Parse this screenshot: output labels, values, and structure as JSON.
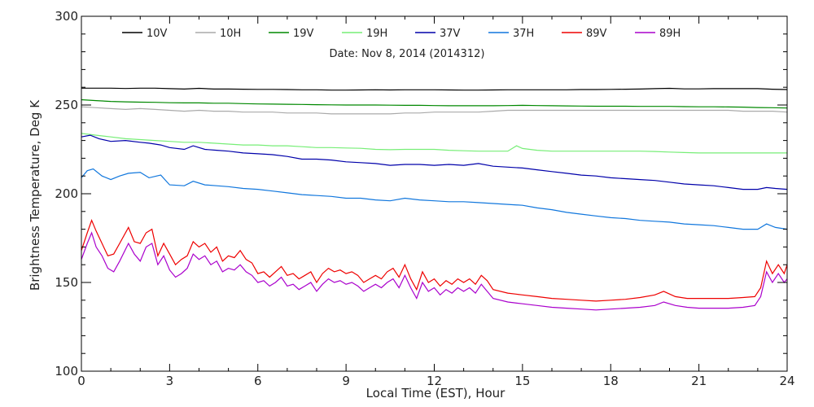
{
  "chart_data": {
    "type": "line",
    "title": "",
    "annotation": "Date: Nov  8, 2014 (2014312)",
    "xlabel": "Local Time (EST), Hour",
    "ylabel": "Brightness Temperature, Deg K",
    "xlim": [
      0,
      24
    ],
    "ylim": [
      100,
      300
    ],
    "xticks": [
      0,
      3,
      6,
      9,
      12,
      15,
      18,
      21,
      24
    ],
    "yticks": [
      100,
      150,
      200,
      250,
      300
    ],
    "grid": false,
    "legend_position": "top",
    "series": [
      {
        "name": "10V",
        "color": "#000000",
        "x": [
          0,
          0.5,
          1,
          1.5,
          2,
          2.5,
          3,
          3.5,
          4,
          4.5,
          5,
          5.5,
          6,
          6.5,
          7,
          7.5,
          8,
          8.5,
          9,
          9.5,
          10,
          10.5,
          11,
          11.5,
          12,
          12.5,
          13,
          13.5,
          14,
          14.5,
          15,
          15.5,
          16,
          16.5,
          17,
          17.5,
          18,
          18.5,
          19,
          19.5,
          20,
          20.5,
          21,
          21.5,
          22,
          22.5,
          23,
          23.5,
          24
        ],
        "y": [
          259.5,
          259.5,
          259.5,
          259.3,
          259.5,
          259.5,
          259.2,
          259.0,
          259.4,
          259.0,
          259.0,
          258.9,
          258.8,
          258.8,
          258.7,
          258.6,
          258.6,
          258.4,
          258.4,
          258.5,
          258.6,
          258.5,
          258.6,
          258.6,
          258.6,
          258.5,
          258.4,
          258.4,
          258.5,
          258.6,
          258.6,
          258.6,
          258.6,
          258.6,
          258.7,
          258.7,
          258.8,
          258.9,
          259.0,
          259.2,
          259.4,
          259.1,
          259.1,
          259.2,
          259.2,
          259.2,
          259.2,
          258.9,
          258.7
        ]
      },
      {
        "name": "10H",
        "color": "#aaaaaa",
        "x": [
          0,
          0.5,
          1,
          1.5,
          2,
          2.5,
          3,
          3.5,
          4,
          4.5,
          5,
          5.5,
          6,
          6.5,
          7,
          7.5,
          8,
          8.5,
          9,
          9.5,
          10,
          10.5,
          11,
          11.5,
          12,
          12.5,
          13,
          13.5,
          14,
          14.5,
          15,
          15.5,
          16,
          16.5,
          17,
          17.5,
          18,
          18.5,
          19,
          19.5,
          20,
          20.5,
          21,
          21.5,
          22,
          22.5,
          23,
          23.5,
          24
        ],
        "y": [
          249.0,
          248.5,
          248.0,
          247.5,
          248.0,
          247.5,
          247.0,
          246.5,
          247.0,
          246.5,
          246.5,
          246.0,
          246.0,
          246.0,
          245.5,
          245.5,
          245.5,
          245.0,
          245.0,
          245.0,
          245.0,
          245.0,
          245.5,
          245.5,
          246.0,
          246.0,
          246.0,
          246.0,
          246.5,
          247.0,
          247.0,
          247.0,
          247.0,
          247.0,
          247.0,
          247.0,
          247.0,
          247.0,
          247.0,
          247.0,
          247.0,
          247.0,
          247.0,
          247.0,
          247.0,
          246.5,
          246.5,
          246.5,
          246.0
        ]
      },
      {
        "name": "19V",
        "color": "#008800",
        "x": [
          0,
          0.5,
          1,
          1.5,
          2,
          2.5,
          3,
          3.5,
          4,
          4.5,
          5,
          5.5,
          6,
          6.5,
          7,
          7.5,
          8,
          8.5,
          9,
          9.5,
          10,
          10.5,
          11,
          11.5,
          12,
          12.5,
          13,
          13.5,
          14,
          14.5,
          15,
          15.5,
          16,
          16.5,
          17,
          17.5,
          18,
          18.5,
          19,
          19.5,
          20,
          20.5,
          21,
          21.5,
          22,
          22.5,
          23,
          23.5,
          24
        ],
        "y": [
          253.0,
          252.5,
          252.0,
          251.8,
          251.6,
          251.5,
          251.3,
          251.2,
          251.2,
          251.0,
          251.0,
          250.8,
          250.6,
          250.5,
          250.4,
          250.3,
          250.2,
          250.1,
          250.0,
          250.0,
          250.0,
          249.9,
          249.8,
          249.8,
          249.7,
          249.6,
          249.6,
          249.6,
          249.6,
          249.7,
          249.8,
          249.7,
          249.6,
          249.5,
          249.4,
          249.3,
          249.3,
          249.3,
          249.2,
          249.2,
          249.2,
          249.1,
          249.0,
          249.0,
          248.9,
          248.8,
          248.6,
          248.5,
          248.3
        ]
      },
      {
        "name": "19H",
        "color": "#77ee77",
        "x": [
          0,
          0.5,
          1,
          1.5,
          2,
          2.5,
          3,
          3.5,
          4,
          4.5,
          5,
          5.5,
          6,
          6.5,
          7,
          7.5,
          8,
          8.5,
          9,
          9.5,
          10,
          10.5,
          11,
          11.5,
          12,
          12.5,
          13,
          13.5,
          14,
          14.5,
          14.8,
          15,
          15.5,
          16,
          16.5,
          17,
          17.5,
          18,
          18.5,
          19,
          19.5,
          20,
          20.5,
          21,
          21.5,
          22,
          22.5,
          23,
          23.5,
          24
        ],
        "y": [
          234.0,
          233.0,
          232.0,
          231.0,
          230.5,
          230.0,
          229.5,
          229.0,
          229.0,
          228.5,
          228.0,
          227.5,
          227.5,
          227.0,
          227.0,
          226.5,
          226.0,
          226.0,
          225.8,
          225.6,
          225.0,
          224.8,
          225.0,
          225.0,
          225.0,
          224.5,
          224.2,
          224.0,
          224.0,
          224.0,
          227.0,
          225.5,
          224.5,
          224.0,
          224.0,
          224.0,
          224.0,
          224.0,
          224.0,
          224.0,
          223.8,
          223.5,
          223.2,
          223.0,
          223.0,
          223.0,
          223.0,
          223.0,
          223.0,
          223.0
        ]
      },
      {
        "name": "37V",
        "color": "#0000aa",
        "x": [
          0,
          0.3,
          0.6,
          1,
          1.5,
          2,
          2.3,
          2.7,
          3,
          3.5,
          3.8,
          4.2,
          4.6,
          5,
          5.5,
          6,
          6.5,
          7,
          7.5,
          8,
          8.5,
          9,
          9.5,
          10,
          10.5,
          11,
          11.5,
          12,
          12.5,
          13,
          13.5,
          14,
          14.5,
          15,
          15.5,
          16,
          16.5,
          17,
          17.5,
          18,
          18.5,
          19,
          19.5,
          20,
          20.5,
          21,
          21.5,
          22,
          22.5,
          23,
          23.3,
          23.6,
          24
        ],
        "y": [
          232.0,
          233.0,
          231.0,
          229.5,
          230.0,
          229.0,
          228.5,
          227.5,
          226.0,
          225.0,
          227.0,
          225.0,
          224.5,
          224.0,
          223.0,
          222.5,
          222.0,
          221.0,
          219.5,
          219.5,
          219.0,
          218.0,
          217.5,
          217.0,
          216.0,
          216.5,
          216.5,
          216.0,
          216.5,
          216.0,
          217.0,
          215.5,
          215.0,
          214.5,
          213.5,
          212.5,
          211.5,
          210.5,
          210.0,
          209.0,
          208.5,
          208.0,
          207.5,
          206.5,
          205.5,
          205.0,
          204.5,
          203.5,
          202.5,
          202.5,
          203.5,
          203.0,
          202.5
        ]
      },
      {
        "name": "37H",
        "color": "#1177dd",
        "x": [
          0,
          0.2,
          0.4,
          0.7,
          1,
          1.3,
          1.6,
          2,
          2.3,
          2.7,
          3,
          3.5,
          3.8,
          4.2,
          4.6,
          5,
          5.5,
          6,
          6.5,
          7,
          7.5,
          8,
          8.5,
          9,
          9.5,
          10,
          10.5,
          11,
          11.5,
          12,
          12.5,
          13,
          13.5,
          14,
          14.5,
          15,
          15.5,
          16,
          16.5,
          17,
          17.5,
          18,
          18.5,
          19,
          19.5,
          20,
          20.5,
          21,
          21.5,
          22,
          22.5,
          23,
          23.3,
          23.6,
          24
        ],
        "y": [
          209.0,
          213.0,
          214.0,
          210.0,
          208.0,
          210.0,
          211.5,
          212.0,
          209.0,
          210.5,
          205.0,
          204.5,
          207.0,
          205.0,
          204.5,
          204.0,
          203.0,
          202.5,
          201.5,
          200.5,
          199.5,
          199.0,
          198.5,
          197.5,
          197.5,
          196.5,
          196.0,
          197.5,
          196.5,
          196.0,
          195.5,
          195.5,
          195.0,
          194.5,
          194.0,
          193.5,
          192.0,
          191.0,
          189.5,
          188.5,
          187.5,
          186.5,
          186.0,
          185.0,
          184.5,
          184.0,
          183.0,
          182.5,
          182.0,
          181.0,
          180.0,
          180.0,
          183.0,
          181.0,
          180.0
        ]
      },
      {
        "name": "89V",
        "color": "#ee0000",
        "x": [
          0,
          0.2,
          0.35,
          0.5,
          0.7,
          0.9,
          1.1,
          1.3,
          1.6,
          1.8,
          2.0,
          2.2,
          2.4,
          2.6,
          2.8,
          3.0,
          3.2,
          3.4,
          3.6,
          3.8,
          4.0,
          4.2,
          4.4,
          4.6,
          4.8,
          5.0,
          5.2,
          5.4,
          5.6,
          5.8,
          6.0,
          6.2,
          6.4,
          6.6,
          6.8,
          7.0,
          7.2,
          7.4,
          7.6,
          7.8,
          8.0,
          8.2,
          8.4,
          8.6,
          8.8,
          9.0,
          9.2,
          9.4,
          9.6,
          9.8,
          10.0,
          10.2,
          10.4,
          10.6,
          10.8,
          11.0,
          11.2,
          11.4,
          11.6,
          11.8,
          12.0,
          12.2,
          12.4,
          12.6,
          12.8,
          13.0,
          13.2,
          13.4,
          13.6,
          13.8,
          14.0,
          14.5,
          15,
          15.5,
          16,
          16.5,
          17,
          17.5,
          18,
          18.5,
          19,
          19.5,
          19.8,
          20.2,
          20.6,
          21,
          21.5,
          22,
          22.5,
          22.9,
          23.1,
          23.3,
          23.5,
          23.7,
          23.9,
          24
        ],
        "y": [
          168,
          178,
          185,
          179,
          172,
          165,
          166,
          172,
          181,
          173,
          172,
          178,
          180,
          165,
          172,
          166,
          160,
          163,
          165,
          173,
          170,
          172,
          167,
          170,
          162,
          165,
          164,
          168,
          163,
          161,
          155,
          156,
          153,
          156,
          159,
          154,
          155,
          152,
          154,
          156,
          150,
          155,
          158,
          156,
          157,
          155,
          156,
          154,
          150,
          152,
          154,
          152,
          156,
          158,
          153,
          160,
          152,
          146,
          156,
          150,
          152,
          148,
          151,
          149,
          152,
          150,
          152,
          149,
          154,
          151,
          146,
          144,
          143,
          142,
          141,
          140.5,
          140,
          139.5,
          140,
          140.5,
          141.5,
          143,
          145,
          142,
          141,
          141,
          141,
          141,
          141.5,
          142,
          147,
          162,
          155,
          160,
          155,
          160
        ]
      },
      {
        "name": "89H",
        "color": "#aa00cc",
        "x": [
          0,
          0.2,
          0.35,
          0.5,
          0.7,
          0.9,
          1.1,
          1.3,
          1.6,
          1.8,
          2.0,
          2.2,
          2.4,
          2.6,
          2.8,
          3.0,
          3.2,
          3.4,
          3.6,
          3.8,
          4.0,
          4.2,
          4.4,
          4.6,
          4.8,
          5.0,
          5.2,
          5.4,
          5.6,
          5.8,
          6.0,
          6.2,
          6.4,
          6.6,
          6.8,
          7.0,
          7.2,
          7.4,
          7.6,
          7.8,
          8.0,
          8.2,
          8.4,
          8.6,
          8.8,
          9.0,
          9.2,
          9.4,
          9.6,
          9.8,
          10.0,
          10.2,
          10.4,
          10.6,
          10.8,
          11.0,
          11.2,
          11.4,
          11.6,
          11.8,
          12.0,
          12.2,
          12.4,
          12.6,
          12.8,
          13.0,
          13.2,
          13.4,
          13.6,
          13.8,
          14.0,
          14.5,
          15,
          15.5,
          16,
          16.5,
          17,
          17.5,
          18,
          18.5,
          19,
          19.5,
          19.8,
          20.2,
          20.6,
          21,
          21.5,
          22,
          22.5,
          22.9,
          23.1,
          23.3,
          23.5,
          23.7,
          23.9,
          24
        ],
        "y": [
          163,
          172,
          178,
          170,
          165,
          158,
          156,
          162,
          172,
          166,
          162,
          170,
          172,
          160,
          165,
          157,
          153,
          155,
          158,
          166,
          163,
          165,
          160,
          162,
          156,
          158,
          157,
          160,
          156,
          154,
          150,
          151,
          148,
          150,
          153,
          148,
          149,
          146,
          148,
          150,
          145,
          149,
          152,
          150,
          151,
          149,
          150,
          148,
          145,
          147,
          149,
          147,
          150,
          152,
          147,
          154,
          147,
          141,
          150,
          145,
          147,
          143,
          146,
          144,
          147,
          145,
          147,
          144,
          149,
          145,
          141,
          139,
          138,
          137,
          136,
          135.5,
          135,
          134.5,
          135,
          135.5,
          136,
          137,
          139,
          137,
          136,
          135.5,
          135.5,
          135.5,
          136,
          137,
          142,
          156,
          150,
          155,
          150,
          152
        ]
      }
    ]
  }
}
